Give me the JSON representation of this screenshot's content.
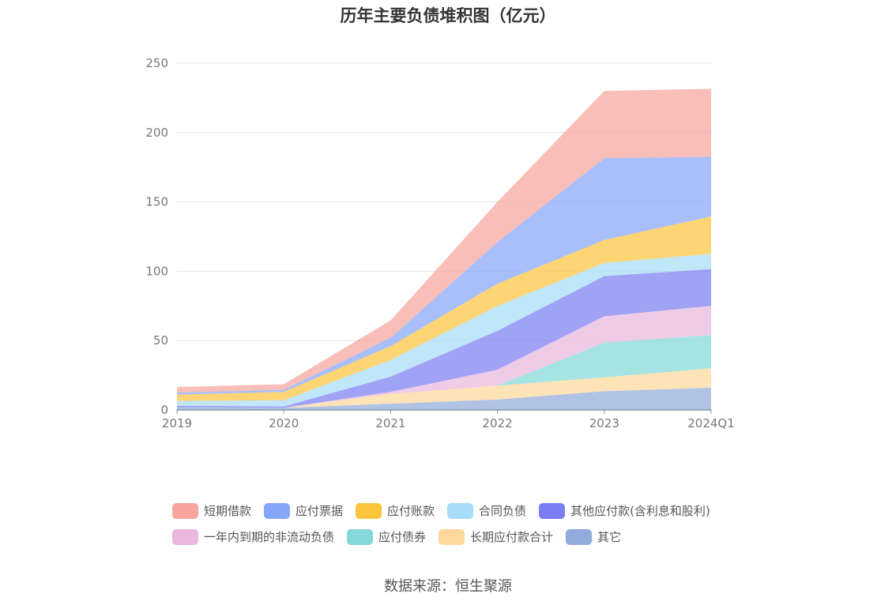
{
  "chart_data": {
    "type": "area",
    "title": "历年主要负债堆积图（亿元）",
    "categories": [
      "2019",
      "2020",
      "2021",
      "2022",
      "2023",
      "2024Q1"
    ],
    "y_ticks": [
      "0",
      "50",
      "100",
      "150",
      "200",
      "250"
    ],
    "ylim": [
      0,
      250
    ],
    "stacked": true,
    "grid": true,
    "legend_position": "bottom",
    "series": [
      {
        "name": "其它",
        "color": "#91acdb",
        "values": [
          2,
          1.5,
          4.5,
          7.5,
          13.5,
          16
        ]
      },
      {
        "name": "长期应付款合计",
        "color": "#fdd89a",
        "values": [
          0,
          0,
          7,
          10,
          10,
          14
        ]
      },
      {
        "name": "应付债券",
        "color": "#84d8d8",
        "values": [
          0,
          0,
          0,
          0,
          25,
          24
        ]
      },
      {
        "name": "一年内到期的非流动负债",
        "color": "#e9b8dc",
        "values": [
          0,
          0,
          1.5,
          11.5,
          19,
          21
        ]
      },
      {
        "name": "其他应付款(含利息和股利)",
        "color": "#7b7ef2",
        "values": [
          1,
          1,
          11,
          28,
          29,
          26.5
        ]
      },
      {
        "name": "合同负债",
        "color": "#a8dcf8",
        "values": [
          3.5,
          4.5,
          12,
          18,
          9.5,
          11
        ]
      },
      {
        "name": "应付账款",
        "color": "#fdc53e",
        "values": [
          4.5,
          6,
          10,
          16,
          16.5,
          27
        ]
      },
      {
        "name": "应付票据",
        "color": "#86a6fb",
        "values": [
          1.5,
          1.5,
          6,
          30,
          59,
          43
        ]
      },
      {
        "name": "短期借款",
        "color": "#f7a59c",
        "values": [
          4,
          4,
          12.5,
          29,
          48.5,
          49
        ]
      }
    ]
  },
  "legend": {
    "row1": [
      {
        "label": "短期借款",
        "color": "#f7a59c"
      },
      {
        "label": "应付票据",
        "color": "#86a6fb"
      },
      {
        "label": "应付账款",
        "color": "#fdc53e"
      },
      {
        "label": "合同负债",
        "color": "#a8dcf8"
      },
      {
        "label": "其他应付款(含利息和股利)",
        "color": "#7b7ef2"
      }
    ],
    "row2": [
      {
        "label": "一年内到期的非流动负债",
        "color": "#e9b8dc"
      },
      {
        "label": "应付债券",
        "color": "#84d8d8"
      },
      {
        "label": "长期应付款合计",
        "color": "#fdd89a"
      },
      {
        "label": "其它",
        "color": "#91acdb"
      }
    ]
  },
  "source": "数据来源：恒生聚源"
}
